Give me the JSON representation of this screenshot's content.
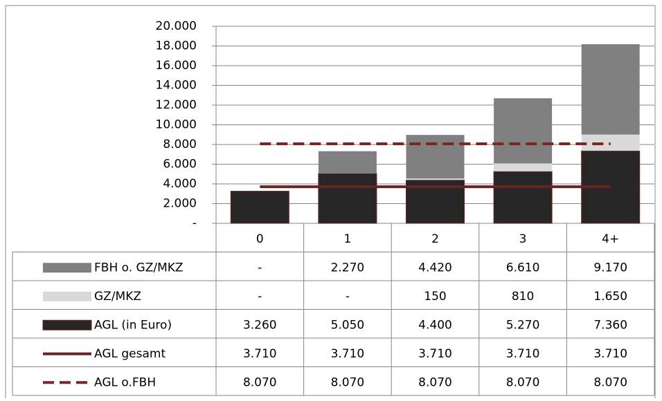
{
  "chart_data": {
    "type": "bar",
    "stacked": true,
    "grid": true,
    "data_table": true,
    "categories": [
      "0",
      "1",
      "2",
      "3",
      "4+"
    ],
    "ylim": [
      0,
      20000
    ],
    "yticks": [
      {
        "value": 0,
        "label": "-"
      },
      {
        "value": 2000,
        "label": "2.000"
      },
      {
        "value": 4000,
        "label": "4.000"
      },
      {
        "value": 6000,
        "label": "6.000"
      },
      {
        "value": 8000,
        "label": "8.000"
      },
      {
        "value": 10000,
        "label": "10.000"
      },
      {
        "value": 12000,
        "label": "12.000"
      },
      {
        "value": 14000,
        "label": "14.000"
      },
      {
        "value": 16000,
        "label": "16.000"
      },
      {
        "value": 18000,
        "label": "18.000"
      },
      {
        "value": 20000,
        "label": "20.000"
      }
    ],
    "series": [
      {
        "name": "FBH o. GZ/MKZ",
        "type": "bar",
        "stack_order": 3,
        "color": "#808080",
        "values": [
          null,
          2270,
          4420,
          6610,
          9170
        ],
        "value_labels": [
          "-",
          "2.270",
          "4.420",
          "6.610",
          "9.170"
        ]
      },
      {
        "name": "GZ/MKZ",
        "type": "bar",
        "stack_order": 2,
        "color": "#d9d9d9",
        "values": [
          null,
          null,
          150,
          810,
          1650
        ],
        "value_labels": [
          "-",
          "-",
          "150",
          "810",
          "1.650"
        ]
      },
      {
        "name": "AGL (in Euro)",
        "type": "bar",
        "stack_order": 1,
        "color": "#262626",
        "values": [
          3260,
          5050,
          4400,
          5270,
          7360
        ],
        "value_labels": [
          "3.260",
          "5.050",
          "4.400",
          "5.270",
          "7.360"
        ]
      },
      {
        "name": "AGL gesamt",
        "type": "line",
        "dashed": false,
        "color": "#6b2222",
        "values": [
          3710,
          3710,
          3710,
          3710,
          3710
        ],
        "value_labels": [
          "3.710",
          "3.710",
          "3.710",
          "3.710",
          "3.710"
        ]
      },
      {
        "name": "AGL o.FBH",
        "type": "line",
        "dashed": true,
        "color": "#7a2626",
        "values": [
          8070,
          8070,
          8070,
          8070,
          8070
        ],
        "value_labels": [
          "8.070",
          "8.070",
          "8.070",
          "8.070",
          "8.070"
        ]
      }
    ]
  }
}
